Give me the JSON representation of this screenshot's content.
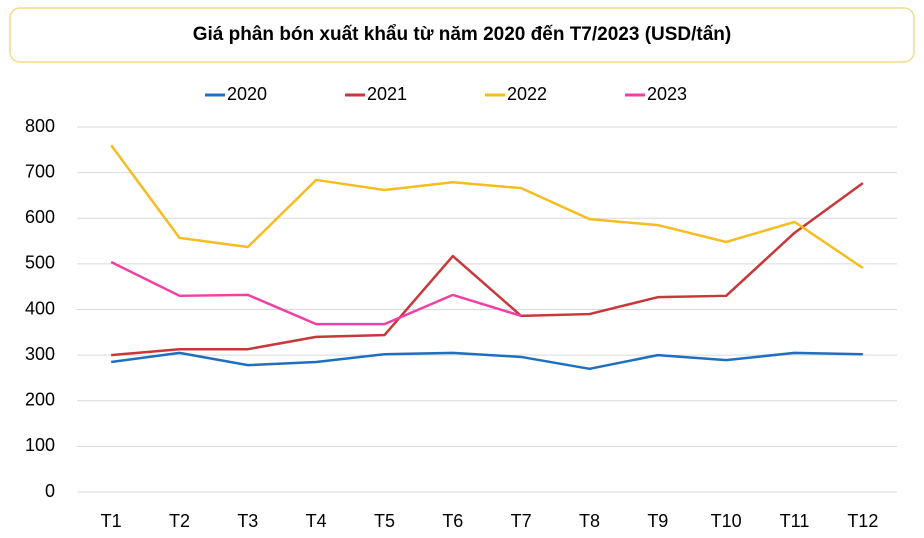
{
  "chart_data": {
    "type": "line",
    "title": "Giá phân bón xuất khẩu từ năm 2020 đến T7/2023 (USD/tấn)",
    "categories": [
      "T1",
      "T2",
      "T3",
      "T4",
      "T5",
      "T6",
      "T7",
      "T8",
      "T9",
      "T10",
      "T11",
      "T12"
    ],
    "series": [
      {
        "name": "2020",
        "color": "#1f6fc0",
        "values": [
          285,
          305,
          278,
          285,
          302,
          305,
          296,
          270,
          300,
          289,
          305,
          302
        ]
      },
      {
        "name": "2021",
        "color": "#c8373a",
        "values": [
          300,
          313,
          313,
          340,
          344,
          517,
          386,
          390,
          427,
          430,
          568,
          677
        ]
      },
      {
        "name": "2022",
        "color": "#f5bd1f",
        "values": [
          760,
          557,
          537,
          684,
          662,
          679,
          666,
          598,
          585,
          548,
          592,
          491
        ]
      },
      {
        "name": "2023",
        "color": "#f23fa5",
        "values": [
          504,
          430,
          432,
          368,
          368,
          432,
          386,
          null,
          null,
          null,
          null,
          null
        ]
      }
    ],
    "ylim": [
      0,
      800
    ],
    "yticks": [
      0,
      100,
      200,
      300,
      400,
      500,
      600,
      700,
      800
    ],
    "grid": true,
    "legend": "top"
  }
}
